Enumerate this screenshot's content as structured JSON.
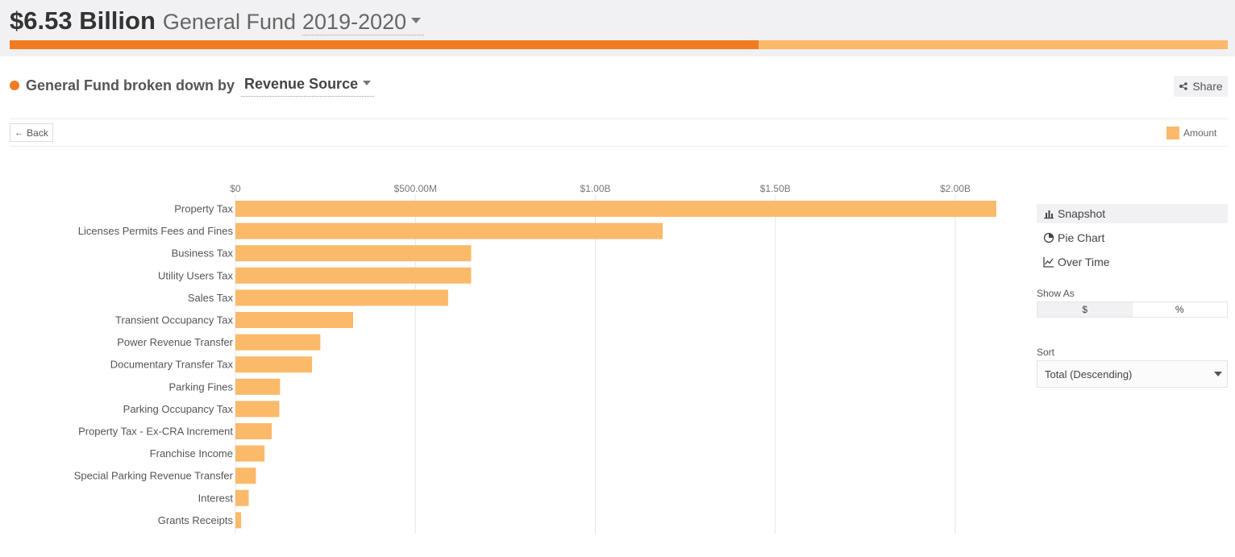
{
  "header": {
    "amount": "$6.53 Billion",
    "fund": "General Fund",
    "year": "2019-2020",
    "spent_fraction": 0.615
  },
  "subheader": {
    "label": "General Fund broken down by",
    "dimension": "Revenue Source",
    "share_label": "Share"
  },
  "toolbar": {
    "back_label": "Back",
    "legend_label": "Amount"
  },
  "sidebar": {
    "views": [
      {
        "label": "Snapshot",
        "icon": "bar-chart-icon",
        "active": true
      },
      {
        "label": "Pie Chart",
        "icon": "pie-chart-icon",
        "active": false
      },
      {
        "label": "Over Time",
        "icon": "line-chart-icon",
        "active": false
      }
    ],
    "show_as_label": "Show As",
    "show_as_options": [
      "$",
      "%"
    ],
    "show_as_selected": "$",
    "sort_label": "Sort",
    "sort_value": "Total (Descending)"
  },
  "colors": {
    "bar": "#fbb96a",
    "accent": "#f17b20",
    "grid": "#e6e6e6"
  },
  "chart_data": {
    "type": "bar",
    "orientation": "horizontal",
    "series_name": "Amount",
    "categories": [
      "Property Tax",
      "Licenses Permits Fees and Fines",
      "Business Tax",
      "Utility Users Tax",
      "Sales Tax",
      "Transient Occupancy Tax",
      "Power Revenue Transfer",
      "Documentary Transfer Tax",
      "Parking Fines",
      "Parking Occupancy Tax",
      "Property Tax - Ex-CRA Increment",
      "Franchise Income",
      "Special Parking Revenue Transfer",
      "Interest",
      "Grants Receipts"
    ],
    "values": [
      2114,
      1187,
      655,
      655,
      591,
      327,
      236,
      213,
      124,
      122,
      101,
      81,
      57,
      37,
      16
    ],
    "value_unit": "millions USD",
    "xlim": [
      0,
      2100
    ],
    "ticks": [
      {
        "value": 0,
        "label": "$0"
      },
      {
        "value": 500,
        "label": "$500.00M"
      },
      {
        "value": 1000,
        "label": "$1.00B"
      },
      {
        "value": 1500,
        "label": "$1.50B"
      },
      {
        "value": 2000,
        "label": "$2.00B"
      }
    ],
    "grid": true
  }
}
